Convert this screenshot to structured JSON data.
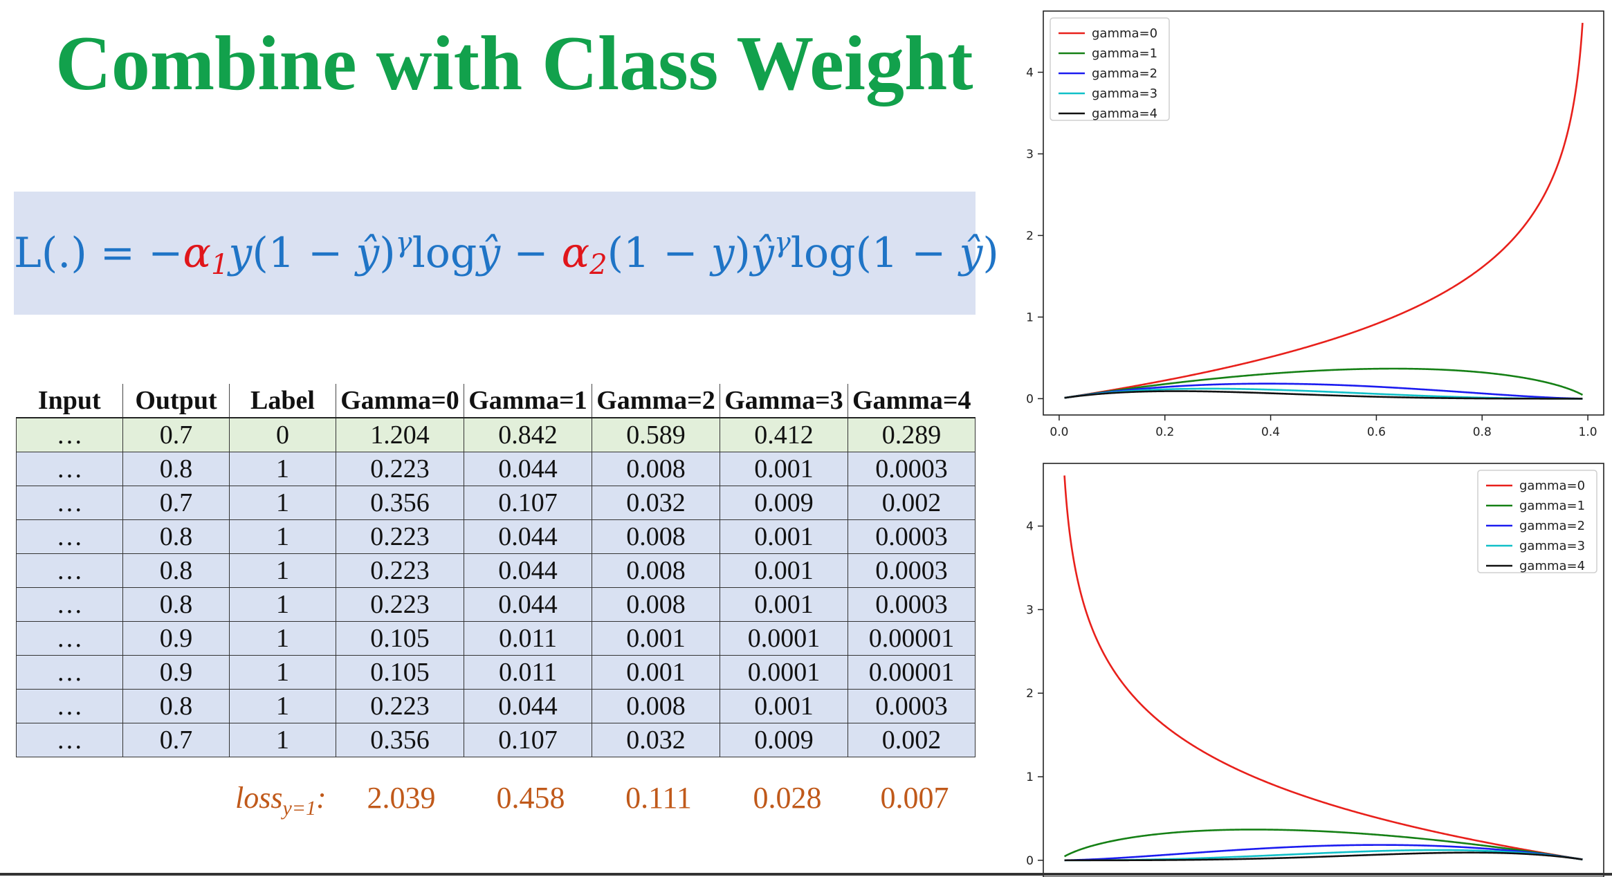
{
  "title": "Combine with Class Weight",
  "formula": {
    "lhs": "L(.) = −",
    "alpha": "α",
    "alpha1_sub": "1",
    "alpha2_sub": "2",
    "y": "y",
    "part1": "(1 − ",
    "yhat": "ŷ",
    "part2": ")",
    "gamma": "γ",
    "log": "log",
    "minus": " − ",
    "part3": "(1 − ",
    "part4": ")",
    "log2": "log(1 − ",
    "close": ")"
  },
  "table": {
    "headers": [
      "Input",
      "Output",
      "Label",
      "Gamma=0",
      "Gamma=1",
      "Gamma=2",
      "Gamma=3",
      "Gamma=4"
    ],
    "rows": [
      [
        "…",
        "0.7",
        "0",
        "1.204",
        "0.842",
        "0.589",
        "0.412",
        "0.289"
      ],
      [
        "…",
        "0.8",
        "1",
        "0.223",
        "0.044",
        "0.008",
        "0.001",
        "0.0003"
      ],
      [
        "…",
        "0.7",
        "1",
        "0.356",
        "0.107",
        "0.032",
        "0.009",
        "0.002"
      ],
      [
        "…",
        "0.8",
        "1",
        "0.223",
        "0.044",
        "0.008",
        "0.001",
        "0.0003"
      ],
      [
        "…",
        "0.8",
        "1",
        "0.223",
        "0.044",
        "0.008",
        "0.001",
        "0.0003"
      ],
      [
        "…",
        "0.8",
        "1",
        "0.223",
        "0.044",
        "0.008",
        "0.001",
        "0.0003"
      ],
      [
        "…",
        "0.9",
        "1",
        "0.105",
        "0.011",
        "0.001",
        "0.0001",
        "0.00001"
      ],
      [
        "…",
        "0.9",
        "1",
        "0.105",
        "0.011",
        "0.001",
        "0.0001",
        "0.00001"
      ],
      [
        "…",
        "0.8",
        "1",
        "0.223",
        "0.044",
        "0.008",
        "0.001",
        "0.0003"
      ],
      [
        "…",
        "0.7",
        "1",
        "0.356",
        "0.107",
        "0.032",
        "0.009",
        "0.002"
      ]
    ],
    "highlight_row": 0,
    "highlight_color": "#e2efda",
    "row_color": "#d9e1f2"
  },
  "loss": {
    "label": "loss",
    "label_sub": "y=1",
    "colon": ":",
    "values": [
      "2.039",
      "0.458",
      "0.111",
      "0.028",
      "0.007"
    ]
  },
  "colors": {
    "title": "#12a14c",
    "formula": "#1f74c6",
    "alpha": "#e0161b",
    "loss": "#c0591a",
    "formula_bg": "#dae1f2"
  },
  "chart_data": [
    {
      "type": "line",
      "function": "-(1-x)^gamma * ln(1-x)",
      "xlim": [
        -0.03,
        1.03
      ],
      "ylim": [
        -0.2,
        4.75
      ],
      "x_ticks": [
        "0.0",
        "0.2",
        "0.4",
        "0.6",
        "0.8",
        "1.0"
      ],
      "y_ticks": [
        "0",
        "1",
        "2",
        "3",
        "4"
      ],
      "legend_position": "top-left",
      "series": [
        {
          "name": "gamma=0",
          "color": "#e8201b",
          "gamma": 0
        },
        {
          "name": "gamma=1",
          "color": "#158015",
          "gamma": 1
        },
        {
          "name": "gamma=2",
          "color": "#1b1bf0",
          "gamma": 2
        },
        {
          "name": "gamma=3",
          "color": "#10c0c8",
          "gamma": 3
        },
        {
          "name": "gamma=4",
          "color": "#111111",
          "gamma": 4
        }
      ]
    },
    {
      "type": "line",
      "function": "-(x)^gamma * ln(x)",
      "xlim": [
        -0.03,
        1.03
      ],
      "ylim": [
        -0.2,
        4.75
      ],
      "x_ticks": [],
      "y_ticks": [
        "0",
        "1",
        "2",
        "3",
        "4"
      ],
      "legend_position": "top-right",
      "series": [
        {
          "name": "gamma=0",
          "color": "#e8201b",
          "gamma": 0
        },
        {
          "name": "gamma=1",
          "color": "#158015",
          "gamma": 1
        },
        {
          "name": "gamma=2",
          "color": "#1b1bf0",
          "gamma": 2
        },
        {
          "name": "gamma=3",
          "color": "#10c0c8",
          "gamma": 3
        },
        {
          "name": "gamma=4",
          "color": "#111111",
          "gamma": 4
        }
      ]
    }
  ]
}
